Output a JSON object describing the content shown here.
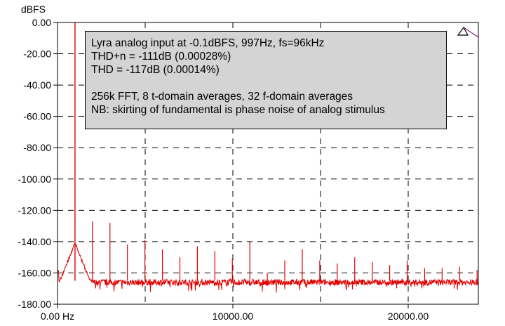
{
  "chart_data": {
    "type": "line",
    "ylabel": "dBFS",
    "ylim": [
      -180,
      0
    ],
    "xlim": [
      0,
      24000
    ],
    "y_ticks": [
      "0.00",
      "-20.00",
      "-40.00",
      "-60.00",
      "-80.00",
      "-100.00",
      "-120.00",
      "-140.00",
      "-160.00",
      "-180.00"
    ],
    "y_tick_values": [
      0,
      -20,
      -40,
      -60,
      -80,
      -100,
      -120,
      -140,
      -160,
      -180
    ],
    "x_ticks": [
      "0.00 Hz",
      "10000.00",
      "20000.00"
    ],
    "x_tick_values": [
      0,
      10000,
      20000
    ],
    "grid": true,
    "grid_style": "dashed",
    "line_color": "#e00000",
    "noise_floor_db": -166,
    "series": [
      {
        "peaks": [
          {
            "f": 997,
            "db": -0.1
          },
          {
            "f": 1994,
            "db": -127
          },
          {
            "f": 2991,
            "db": -128
          },
          {
            "f": 3988,
            "db": -142
          },
          {
            "f": 4985,
            "db": -139
          },
          {
            "f": 5982,
            "db": -145
          },
          {
            "f": 6979,
            "db": -150
          },
          {
            "f": 7976,
            "db": -143
          },
          {
            "f": 8973,
            "db": -146
          },
          {
            "f": 9970,
            "db": -151
          },
          {
            "f": 10967,
            "db": -140
          },
          {
            "f": 11964,
            "db": -160
          },
          {
            "f": 12961,
            "db": -152
          },
          {
            "f": 13958,
            "db": -145
          },
          {
            "f": 14955,
            "db": -152
          },
          {
            "f": 15952,
            "db": -154
          },
          {
            "f": 16949,
            "db": -150
          },
          {
            "f": 17946,
            "db": -153
          },
          {
            "f": 18943,
            "db": -155
          },
          {
            "f": 19940,
            "db": -152
          },
          {
            "f": 20937,
            "db": -157
          },
          {
            "f": 21934,
            "db": -157
          },
          {
            "f": 22931,
            "db": -156
          },
          {
            "f": 23928,
            "db": -158
          }
        ]
      }
    ]
  },
  "annotation": {
    "lines": [
      "Lyra analog input at -0.1dBFS, 997Hz, fs=96kHz",
      "THD+n = -111dB (0.00028%)",
      "THD = -117dB (0.00014%)",
      "",
      "256k FFT, 8 t-domain averages, 32 f-domain averages",
      "NB: skirting of fundamental is phase noise of analog stimulus"
    ]
  }
}
